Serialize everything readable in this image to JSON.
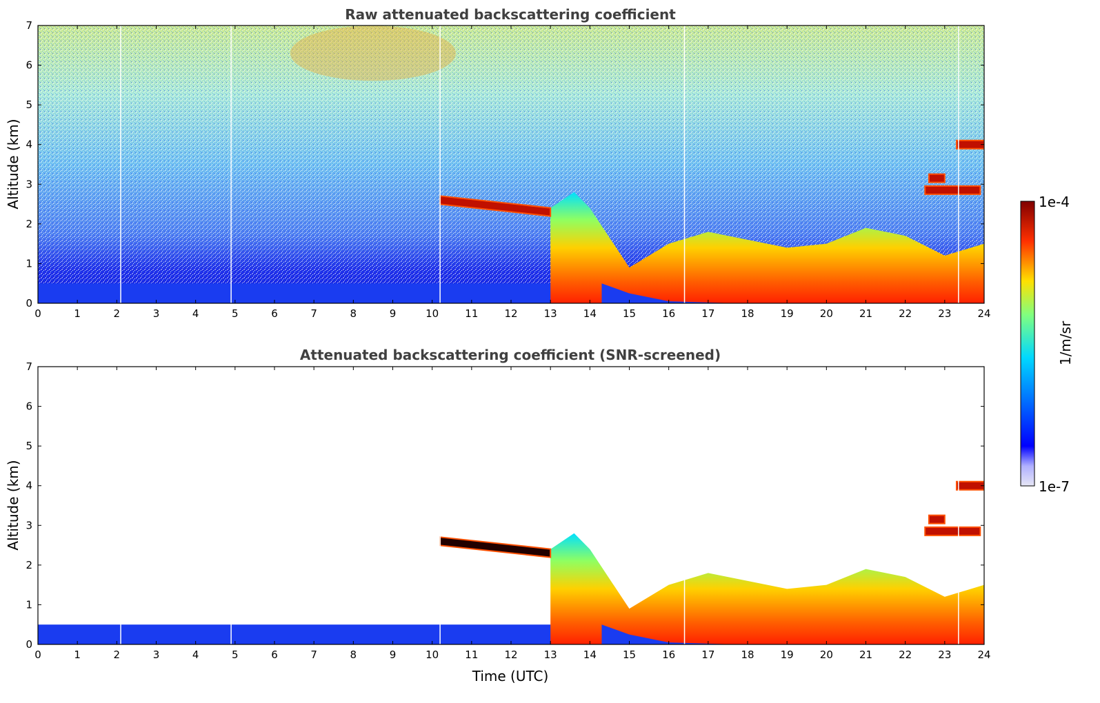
{
  "chart_data": [
    {
      "type": "heatmap",
      "title": "Raw attenuated backscattering coefficient",
      "xlabel": "",
      "ylabel": "Altitude (km)",
      "xlim": [
        0,
        24
      ],
      "ylim": [
        0,
        7
      ],
      "xticks": [
        0,
        1,
        2,
        3,
        4,
        5,
        6,
        7,
        8,
        9,
        10,
        11,
        12,
        13,
        14,
        15,
        16,
        17,
        18,
        19,
        20,
        21,
        22,
        23,
        24
      ],
      "yticks": [
        0,
        1,
        2,
        3,
        4,
        5,
        6,
        7
      ],
      "gaps_utc": [
        2.1,
        4.9,
        10.2,
        16.4,
        23.35
      ],
      "aerosol_layer_top_km": [
        [
          0,
          0.5
        ],
        [
          14.3,
          0.5
        ],
        [
          15.0,
          0.9
        ],
        [
          16.0,
          1.5
        ],
        [
          17.0,
          1.8
        ],
        [
          18.0,
          1.6
        ],
        [
          19.0,
          1.4
        ],
        [
          20.0,
          1.5
        ],
        [
          21.0,
          1.9
        ],
        [
          22.0,
          1.7
        ],
        [
          23.0,
          1.2
        ],
        [
          24.0,
          1.5
        ]
      ],
      "cloud_layers": [
        {
          "x_start": 10.2,
          "x_end": 13.0,
          "altitude_km": [
            2.6,
            2.3
          ]
        },
        {
          "x_start": 22.5,
          "x_end": 23.9,
          "altitude_km": [
            2.85,
            2.85
          ]
        },
        {
          "x_start": 22.6,
          "x_end": 23.0,
          "altitude_km": [
            3.15,
            3.15
          ]
        },
        {
          "x_start": 23.3,
          "x_end": 24.0,
          "altitude_km": [
            4.0,
            4.0
          ]
        }
      ],
      "screened": false
    },
    {
      "type": "heatmap",
      "title": "Attenuated backscattering coefficient (SNR-screened)",
      "xlabel": "Time (UTC)",
      "ylabel": "Altitude (km)",
      "xlim": [
        0,
        24
      ],
      "ylim": [
        0,
        7
      ],
      "xticks": [
        0,
        1,
        2,
        3,
        4,
        5,
        6,
        7,
        8,
        9,
        10,
        11,
        12,
        13,
        14,
        15,
        16,
        17,
        18,
        19,
        20,
        21,
        22,
        23,
        24
      ],
      "yticks": [
        0,
        1,
        2,
        3,
        4,
        5,
        6,
        7
      ],
      "gaps_utc": [
        2.1,
        4.9,
        10.2,
        16.4,
        23.35
      ],
      "aerosol_layer_top_km": [
        [
          0,
          0.5
        ],
        [
          14.3,
          0.5
        ],
        [
          15.0,
          0.9
        ],
        [
          16.0,
          1.5
        ],
        [
          17.0,
          1.8
        ],
        [
          18.0,
          1.6
        ],
        [
          19.0,
          1.4
        ],
        [
          20.0,
          1.5
        ],
        [
          21.0,
          1.9
        ],
        [
          22.0,
          1.7
        ],
        [
          23.0,
          1.2
        ],
        [
          24.0,
          1.5
        ]
      ],
      "cloud_layers": [
        {
          "x_start": 10.2,
          "x_end": 13.0,
          "altitude_km": [
            2.6,
            2.3
          ]
        },
        {
          "x_start": 22.5,
          "x_end": 23.9,
          "altitude_km": [
            2.85,
            2.85
          ]
        },
        {
          "x_start": 22.6,
          "x_end": 23.0,
          "altitude_km": [
            3.15,
            3.15
          ]
        },
        {
          "x_start": 23.3,
          "x_end": 24.0,
          "altitude_km": [
            4.0,
            4.0
          ]
        }
      ],
      "screened": true
    }
  ],
  "colorbar": {
    "label": "1/m/sr",
    "max_label": "1e-4",
    "min_label": "1e-7",
    "scale": "log",
    "colormap": "jet",
    "colors": [
      "#e6e6f5",
      "#0000ff",
      "#00c8ff",
      "#80ff80",
      "#ffd000",
      "#ff4000",
      "#800000"
    ]
  }
}
